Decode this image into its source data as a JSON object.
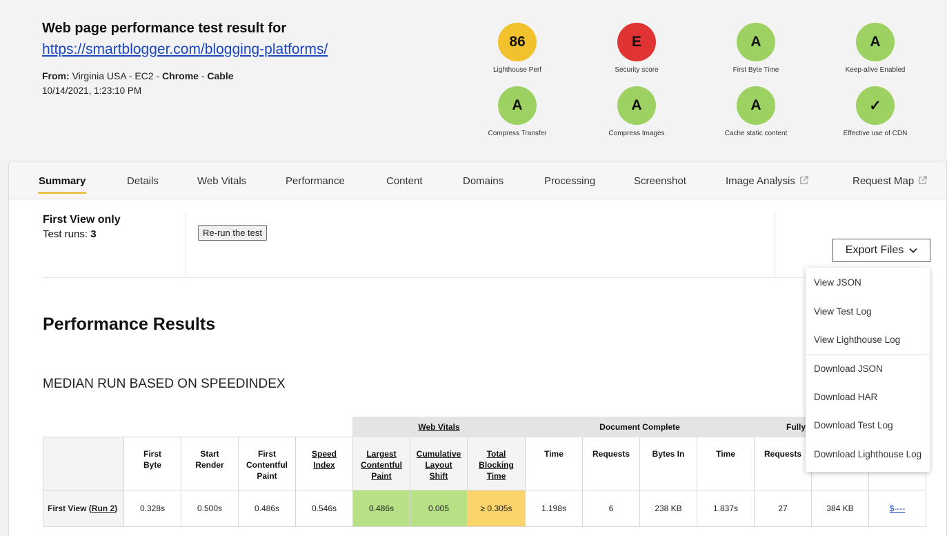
{
  "header": {
    "title": "Web page performance test result for",
    "url": "https://smartblogger.com/blogging-platforms/",
    "from_label": "From:",
    "location": "Virginia USA - EC2",
    "sep1": " - ",
    "browser": "Chrome",
    "sep2": " - ",
    "connection": "Cable",
    "date": "10/14/2021, 1:23:10 PM"
  },
  "grades": [
    {
      "value": "86",
      "label": "Lighthouse Perf",
      "color": "#f2c12e"
    },
    {
      "value": "E",
      "label": "Security score",
      "color": "#e03434"
    },
    {
      "value": "A",
      "label": "First Byte Time",
      "color": "#9dd263"
    },
    {
      "value": "A",
      "label": "Keep-alive Enabled",
      "color": "#9dd263"
    },
    {
      "value": "A",
      "label": "Compress Transfer",
      "color": "#9dd263"
    },
    {
      "value": "A",
      "label": "Compress Images",
      "color": "#9dd263"
    },
    {
      "value": "A",
      "label": "Cache static content",
      "color": "#9dd263"
    },
    {
      "value": "✓",
      "label": "Effective use of CDN",
      "color": "#9dd263"
    }
  ],
  "tabs": [
    {
      "label": "Summary"
    },
    {
      "label": "Details"
    },
    {
      "label": "Web Vitals"
    },
    {
      "label": "Performance"
    },
    {
      "label": "Content"
    },
    {
      "label": "Domains"
    },
    {
      "label": "Processing"
    },
    {
      "label": "Screenshot"
    },
    {
      "label": "Image Analysis"
    },
    {
      "label": "Request Map"
    }
  ],
  "summary": {
    "view_title": "First View only",
    "runs_label": "Test runs: ",
    "runs_value": "3",
    "rerun_label": "Re-run the test",
    "export_label": "Export Files"
  },
  "perf_title": "Performance Results",
  "median_title": "MEDIAN RUN BASED ON SPEEDINDEX",
  "table": {
    "groups": [
      "Web Vitals",
      "Document Complete",
      "Fully"
    ],
    "cols": {
      "first_byte": [
        "First",
        "Byte"
      ],
      "start_render": [
        "Start",
        "Render"
      ],
      "fcp": [
        "First",
        "Contentful",
        "Paint"
      ],
      "speed_index": [
        "Speed",
        "Index"
      ],
      "lcp": [
        "Largest",
        "Contentful",
        "Paint"
      ],
      "cls": [
        "Cumulative",
        "Layout",
        "Shift"
      ],
      "tbt": [
        "Total",
        "Blocking",
        "Time"
      ],
      "dc_time": "Time",
      "dc_requests": "Requests",
      "dc_bytes": "Bytes In",
      "fl_time": "Time",
      "fl_requests": "Requests"
    },
    "row": {
      "label": "First View (",
      "run_link": "Run 2",
      "label_end": ")",
      "first_byte": "0.328s",
      "start_render": "0.500s",
      "fcp": "0.486s",
      "speed_index": "0.546s",
      "lcp": "0.486s",
      "cls": "0.005",
      "tbt": "≥ 0.305s",
      "dc_time": "1.198s",
      "dc_requests": "6",
      "dc_bytes": "238 KB",
      "fl_time": "1.837s",
      "fl_requests": "27",
      "fl_bytes": "384 KB",
      "cost": "$----"
    }
  },
  "export_menu": {
    "items": [
      "View JSON",
      "View Test Log",
      "View Lighthouse Log",
      "Download JSON",
      "Download HAR",
      "Download Test Log",
      "Download Lighthouse Log"
    ]
  }
}
